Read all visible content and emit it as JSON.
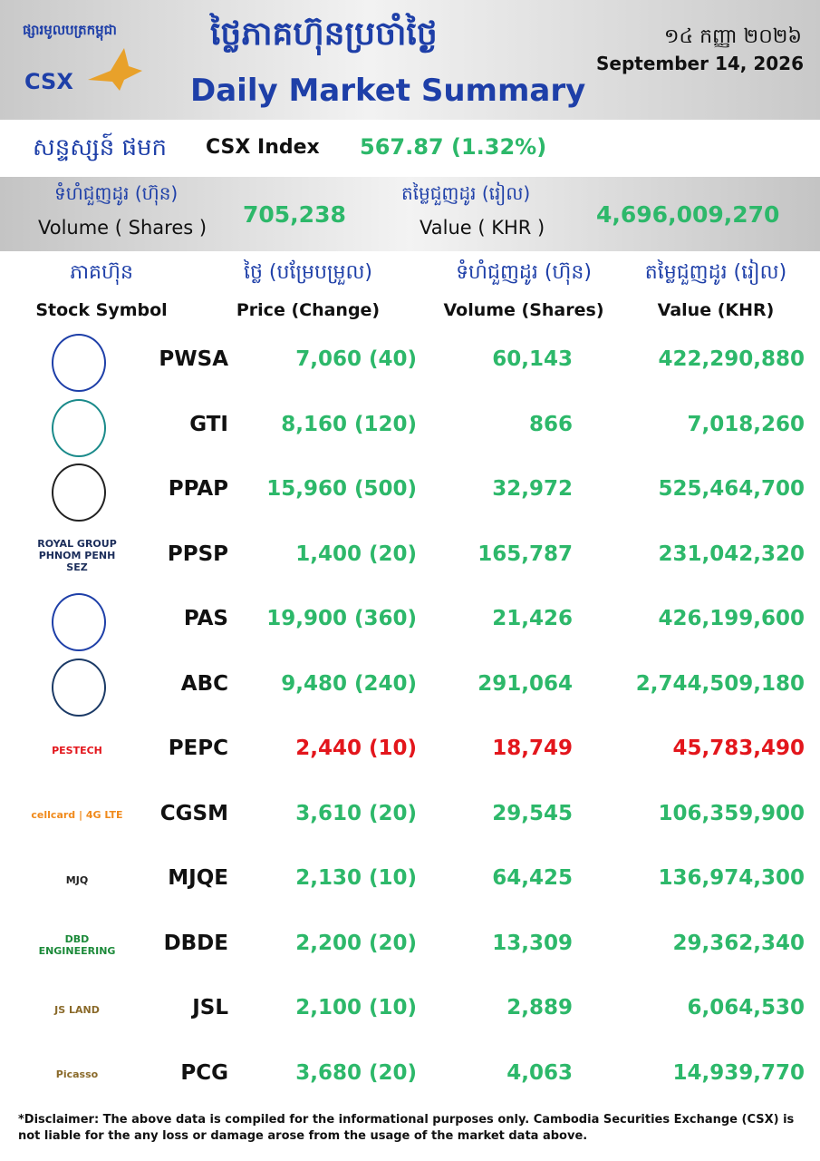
{
  "header": {
    "logo_khmer": "ផ្សារមូលបត្រកម្ពុជា",
    "logo": "CSX",
    "title_khmer": "ថ្លៃភាគហ៊ុនប្រចាំថ្ងៃ",
    "title": "Daily Market Summary",
    "date_khmer": "១៤ កញ្ញា ២០២៦",
    "date": "September 14, 2026"
  },
  "index": {
    "label_khmer": "សន្ទស្សន៍ ផមក",
    "label": "CSX Index",
    "value": "567.87 (1.32%)"
  },
  "totals": {
    "volume_khmer": "ទំហំជួញដូរ (ហ៊ុន)",
    "volume_label": "Volume ( Shares )",
    "volume": "705,238",
    "value_khmer": "តម្លៃជួញដូរ (រៀល)",
    "value_label": "Value ( KHR )",
    "value": "4,696,009,270"
  },
  "table": {
    "header_khmer": [
      "ភាគហ៊ុន",
      "ថ្លៃ (បម្រែបម្រួល)",
      "ទំហំជួញដូរ (ហ៊ុន)",
      "តម្លៃជួញដូរ (រៀល)"
    ],
    "header": [
      "Stock Symbol",
      "Price (Change)",
      "Volume (Shares)",
      "Value (KHR)"
    ],
    "rows": [
      {
        "logo": null,
        "symbol": "PWSA",
        "price": "7,060 (40)",
        "volume": "60,143",
        "value": "422,290,880",
        "color": "#2db86a"
      },
      {
        "logo": null,
        "symbol": "GTI",
        "price": "8,160 (120)",
        "volume": "866",
        "value": "7,018,260",
        "color": "#2db86a"
      },
      {
        "logo": null,
        "symbol": "PPAP",
        "price": "15,960 (500)",
        "volume": "32,972",
        "value": "525,464,700",
        "color": "#2db86a"
      },
      {
        "logo": "ROYAL GROUP PHNOM PENH SEZ",
        "symbol": "PPSP",
        "price": "1,400 (20)",
        "volume": "165,787",
        "value": "231,042,320",
        "color": "#2db86a"
      },
      {
        "logo": null,
        "symbol": "PAS",
        "price": "19,900 (360)",
        "volume": "21,426",
        "value": "426,199,600",
        "color": "#2db86a"
      },
      {
        "logo": null,
        "symbol": "ABC",
        "price": "9,480 (240)",
        "volume": "291,064",
        "value": "2,744,509,180",
        "color": "#2db86a"
      },
      {
        "logo": "PESTECH",
        "symbol": "PEPC",
        "price": "2,440 (10)",
        "volume": "18,749",
        "value": "45,783,490",
        "color": "#e3161c"
      },
      {
        "logo": "cellcard | 4G LTE",
        "symbol": "CGSM",
        "price": "3,610 (20)",
        "volume": "29,545",
        "value": "106,359,900",
        "color": "#2db86a"
      },
      {
        "logo": "MJQ",
        "symbol": "MJQE",
        "price": "2,130 (10)",
        "volume": "64,425",
        "value": "136,974,300",
        "color": "#2db86a"
      },
      {
        "logo": "DBD ENGINEERING",
        "symbol": "DBDE",
        "price": "2,200 (20)",
        "volume": "13,309",
        "value": "29,362,340",
        "color": "#2db86a"
      },
      {
        "logo": "JS LAND",
        "symbol": "JSL",
        "price": "2,100 (10)",
        "volume": "2,889",
        "value": "6,064,530",
        "color": "#2db86a"
      },
      {
        "logo": "Picasso",
        "symbol": "PCG",
        "price": "3,680 (20)",
        "volume": "4,063",
        "value": "14,939,770",
        "color": "#2db86a"
      }
    ]
  },
  "disclaimer": "*Disclaimer: The above data is compiled for the informational purposes only. Cambodia Securities Exchange (CSX) is not liable for the any loss or damage arose from the usage of the market data above."
}
